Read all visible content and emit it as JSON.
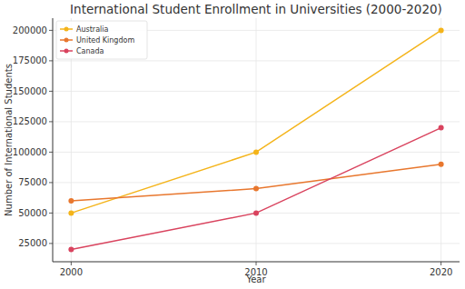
{
  "chart_data": {
    "type": "line",
    "title": "International Student Enrollment in Universities (2000-2020)",
    "x_label": "Year",
    "y_label": "Number of International Students",
    "x": [
      2000,
      2010,
      2020
    ],
    "series": [
      {
        "name": "Australia",
        "color": "#f4b41a",
        "values": [
          50000,
          100000,
          200000
        ]
      },
      {
        "name": "United Kingdom",
        "color": "#e8772e",
        "values": [
          60000,
          70000,
          90000
        ]
      },
      {
        "name": "Canada",
        "color": "#d9435e",
        "values": [
          20000,
          50000,
          120000
        ]
      }
    ],
    "xlim": [
      1999,
      2021
    ],
    "xticks": [
      2000,
      2010,
      2020
    ],
    "ylim": [
      10000,
      210000
    ],
    "yticks": [
      25000,
      50000,
      75000,
      100000,
      125000,
      150000,
      175000,
      200000
    ],
    "grid": true,
    "legend": "upper-left",
    "marker": "circle"
  }
}
